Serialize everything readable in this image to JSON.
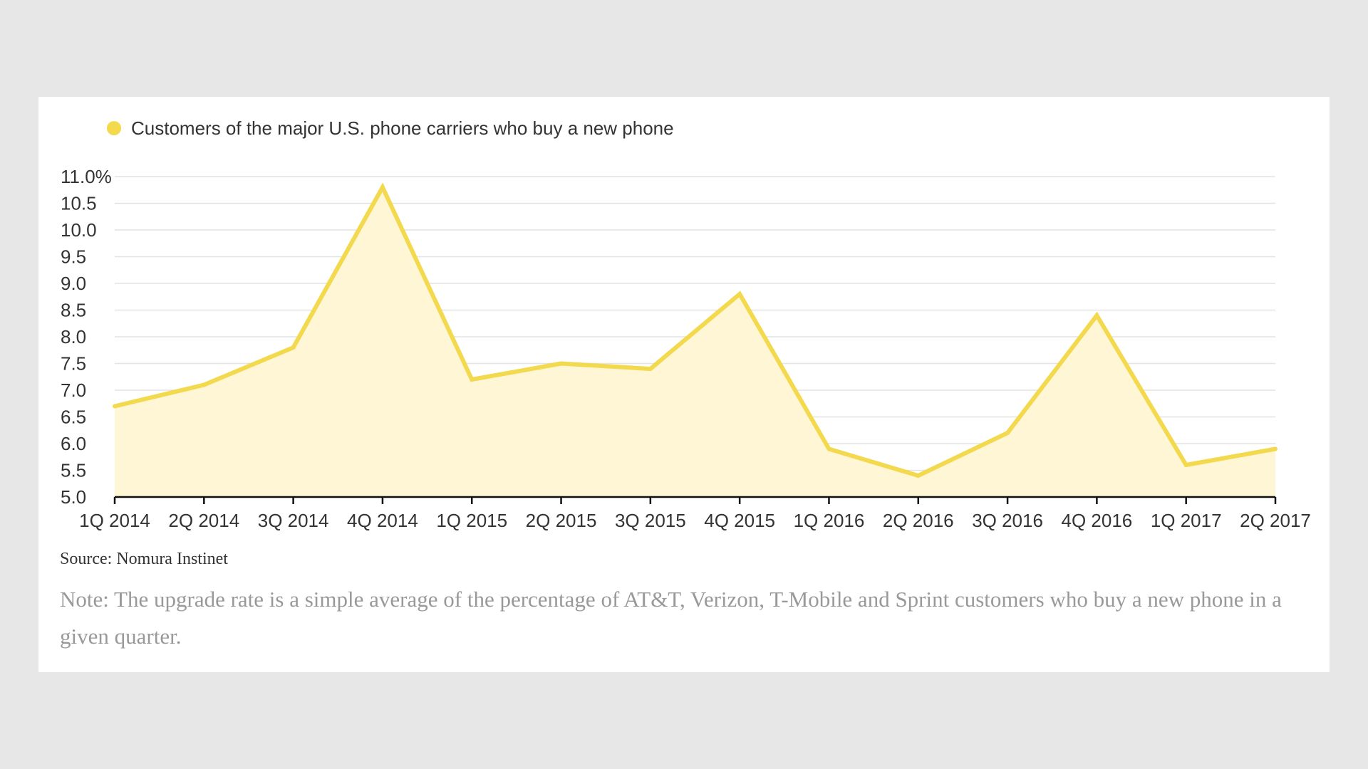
{
  "chart_data": {
    "type": "area",
    "legend": [
      {
        "label": "Customers of the major U.S. phone carriers who buy a new phone",
        "color": "#f2d94e"
      }
    ],
    "categories": [
      "1Q 2014",
      "2Q 2014",
      "3Q 2014",
      "4Q 2014",
      "1Q 2015",
      "2Q 2015",
      "3Q 2015",
      "4Q 2015",
      "1Q 2016",
      "2Q 2016",
      "3Q 2016",
      "4Q 2016",
      "1Q 2017",
      "2Q 2017"
    ],
    "series": [
      {
        "name": "Customers of the major U.S. phone carriers who buy a new phone",
        "values": [
          6.7,
          7.1,
          7.8,
          10.8,
          7.2,
          7.5,
          7.4,
          8.8,
          5.9,
          5.4,
          6.2,
          8.4,
          5.6,
          5.9
        ]
      }
    ],
    "ylim": [
      5.0,
      11.0
    ],
    "yticks": [
      "5.0",
      "5.5",
      "6.0",
      "6.5",
      "7.0",
      "7.5",
      "8.0",
      "8.5",
      "9.0",
      "9.5",
      "10.0",
      "10.5",
      "11.0%"
    ],
    "grid": true,
    "line_color": "#f2d94e",
    "fill_color": "#fff6d6"
  },
  "source": "Source: Nomura Instinet",
  "note": "Note: The upgrade rate is a simple average of the percentage of AT&T, Verizon, T-Mobile and Sprint customers who buy a new phone in a given quarter."
}
